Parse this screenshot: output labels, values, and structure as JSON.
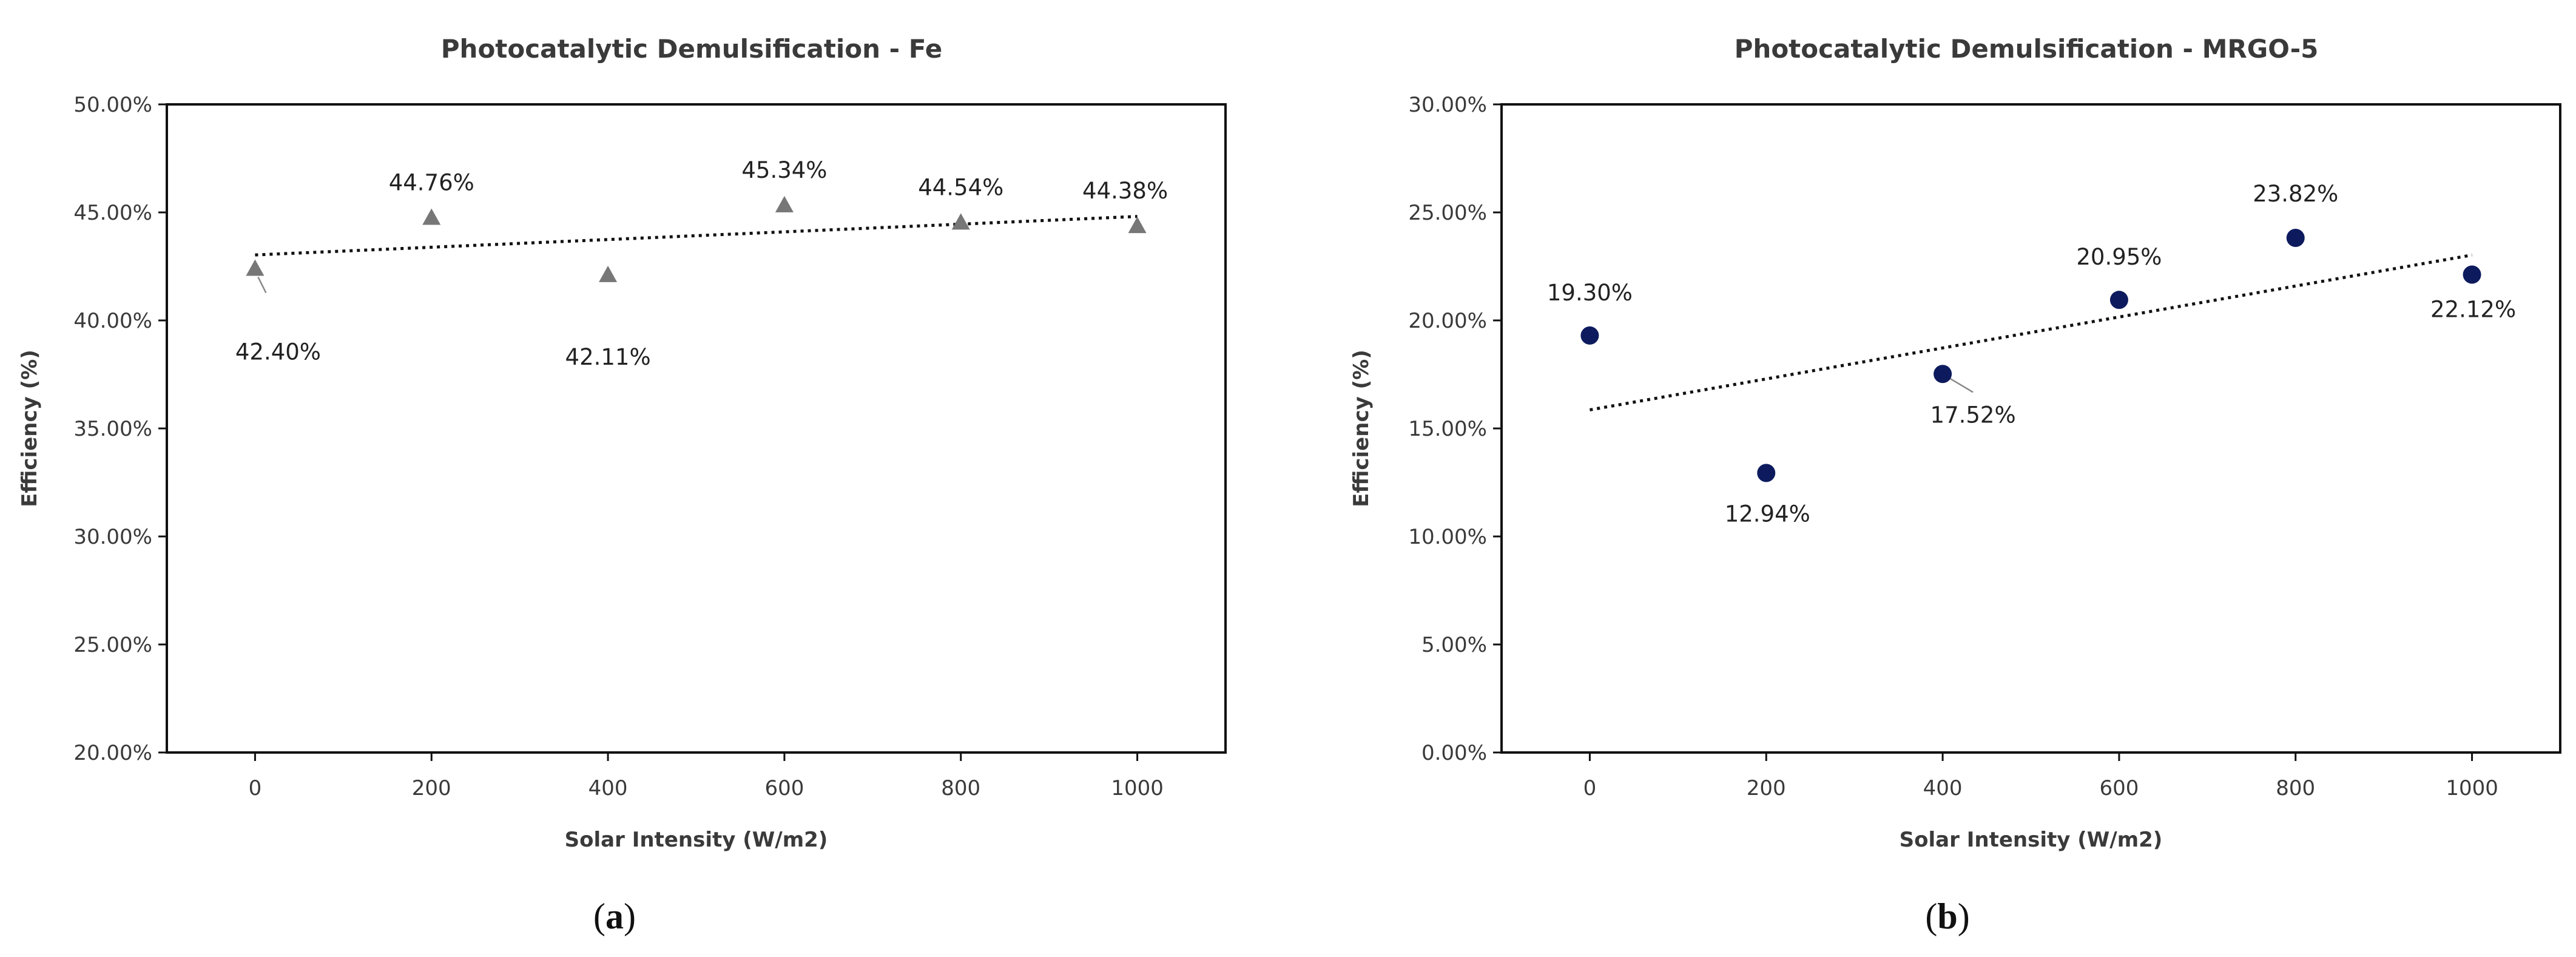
{
  "colors": {
    "axis": "#111111",
    "text": "#3a3a3a",
    "marker_a": "#777777",
    "marker_b": "#0d1b5e",
    "trendline": "#111111"
  },
  "chart_data": [
    {
      "type": "scatter",
      "panel": "(a)",
      "panel_parts": {
        "open": "(",
        "letter": "a",
        "close": ")"
      },
      "title": "Photocatalytic Demulsification - Fe",
      "xlabel": "Solar Intensity (W/m2)",
      "ylabel": "Efficiency (%)",
      "xlim": [
        -100,
        1100
      ],
      "ylim": [
        20,
        50
      ],
      "xticks": [
        0,
        200,
        400,
        600,
        800,
        1000
      ],
      "yticks": [
        20,
        25,
        30,
        35,
        40,
        45,
        50
      ],
      "ytick_labels": [
        "20.00%",
        "25.00%",
        "30.00%",
        "35.00%",
        "40.00%",
        "45.00%",
        "50.00%"
      ],
      "marker": "triangle",
      "grid": false,
      "trendline": "linear",
      "x": [
        0,
        200,
        400,
        600,
        800,
        1000
      ],
      "y": [
        42.4,
        44.76,
        42.11,
        45.34,
        44.54,
        44.38
      ],
      "data_labels": [
        "42.40%",
        "44.76%",
        "42.11%",
        "45.34%",
        "44.54%",
        "44.38%"
      ]
    },
    {
      "type": "scatter",
      "panel": "(b)",
      "panel_parts": {
        "open": "(",
        "letter": "b",
        "close": ")"
      },
      "title": "Photocatalytic Demulsification - MRGO-5",
      "xlabel": "Solar Intensity (W/m2)",
      "ylabel": "Efficiency (%)",
      "xlim": [
        -100,
        1100
      ],
      "ylim": [
        0,
        30
      ],
      "xticks": [
        0,
        200,
        400,
        600,
        800,
        1000
      ],
      "yticks": [
        0,
        5,
        10,
        15,
        20,
        25,
        30
      ],
      "ytick_labels": [
        "0.00%",
        "5.00%",
        "10.00%",
        "15.00%",
        "20.00%",
        "25.00%",
        "30.00%"
      ],
      "marker": "circle",
      "grid": false,
      "trendline": "linear",
      "x": [
        0,
        200,
        400,
        600,
        800,
        1000
      ],
      "y": [
        19.3,
        12.94,
        17.52,
        20.95,
        23.82,
        22.12
      ],
      "data_labels": [
        "19.30%",
        "12.94%",
        "17.52%",
        "20.95%",
        "23.82%",
        "22.12%"
      ]
    }
  ]
}
